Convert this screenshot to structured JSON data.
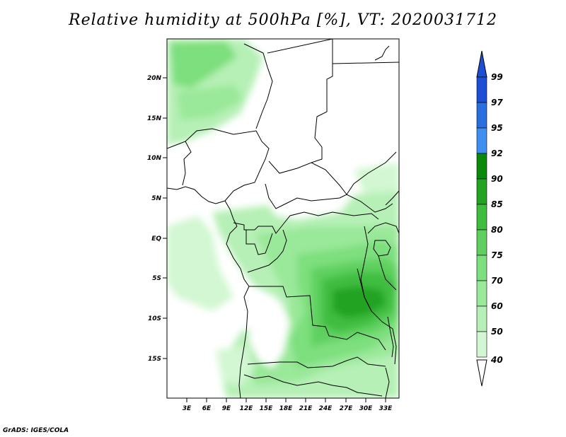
{
  "title": "Relative humidity at 500hPa [%], VT: 2020031712",
  "credit": "GrADS: IGES/COLA",
  "axes": {
    "lat_labels": [
      "20N",
      "15N",
      "10N",
      "5N",
      "EQ",
      "5S",
      "10S",
      "15S"
    ],
    "lon_labels": [
      "3E",
      "6E",
      "9E",
      "12E",
      "15E",
      "18E",
      "21E",
      "24E",
      "27E",
      "30E",
      "33E"
    ]
  },
  "colorbar": {
    "labels": [
      "99",
      "97",
      "95",
      "92",
      "90",
      "85",
      "80",
      "75",
      "70",
      "60",
      "50",
      "40"
    ],
    "colors": [
      "#1d4fd6",
      "#2a6fe0",
      "#3f8ff0",
      "#0a8a0a",
      "#22a322",
      "#3fbd3f",
      "#5fd05f",
      "#7ddf7d",
      "#9ae89a",
      "#b6f0b6",
      "#d2f7d2",
      "#ecfcec"
    ],
    "bottom_color": "#ffffff",
    "top_color": "#1d4fd6"
  },
  "chart_data": {
    "type": "heatmap",
    "title": "Relative humidity at 500hPa [%], VT: 2020031712",
    "variable": "Relative humidity",
    "level": "500hPa",
    "units": "%",
    "valid_time": "2020031712",
    "region": {
      "lon_range_deg": [
        0,
        35
      ],
      "lat_range_deg": [
        -20,
        24
      ]
    },
    "levels": [
      40,
      50,
      60,
      70,
      75,
      80,
      85,
      90,
      92,
      95,
      97,
      99
    ],
    "xticks": [
      "3E",
      "6E",
      "9E",
      "12E",
      "15E",
      "18E",
      "21E",
      "24E",
      "27E",
      "30E",
      "33E"
    ],
    "yticks": [
      "20N",
      "15N",
      "10N",
      "5N",
      "EQ",
      "5S",
      "10S",
      "15S"
    ]
  }
}
